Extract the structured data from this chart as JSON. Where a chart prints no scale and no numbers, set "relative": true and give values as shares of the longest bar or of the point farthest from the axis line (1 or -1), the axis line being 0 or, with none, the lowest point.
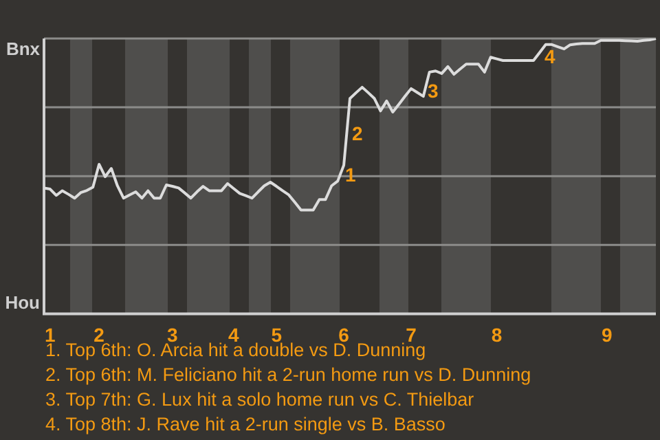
{
  "chart_data": {
    "type": "line",
    "relative": true,
    "categories": [
      null,
      "1",
      null,
      null,
      null,
      null,
      null,
      null,
      null,
      "2",
      null,
      null,
      null,
      null,
      null,
      null,
      null,
      null,
      null,
      null,
      null,
      "3",
      null,
      null,
      null,
      null,
      null,
      null,
      null,
      null,
      null,
      "4",
      null,
      null,
      null,
      null,
      null,
      null,
      "5",
      null,
      null,
      null,
      null,
      null,
      null,
      null,
      null,
      null,
      null,
      "6",
      null,
      null,
      null,
      null,
      null,
      null,
      null,
      null,
      null,
      null,
      "7",
      null,
      null,
      null,
      null,
      null,
      null,
      null,
      null,
      null,
      null,
      null,
      null,
      null,
      "8",
      null,
      null,
      null,
      null,
      null,
      null,
      null,
      null,
      null,
      null,
      null,
      null,
      null,
      null,
      null,
      null,
      null,
      "9",
      null,
      null,
      null,
      null,
      null,
      null,
      null,
      null
    ],
    "series": [
      {
        "color": "#dcdcdc",
        "values": [
          0.457,
          0.453,
          0.43,
          0.447,
          0.434,
          0.42,
          0.44,
          0.448,
          0.46,
          0.543,
          0.498,
          0.528,
          0.465,
          0.42,
          0.432,
          0.443,
          0.42,
          0.447,
          0.42,
          0.42,
          0.468,
          0.463,
          0.457,
          0.439,
          0.42,
          0.443,
          0.463,
          0.447,
          0.447,
          0.447,
          0.473,
          0.455,
          0.437,
          0.429,
          0.42,
          0.443,
          0.465,
          0.478,
          0.463,
          0.447,
          0.432,
          0.405,
          0.377,
          0.377,
          0.377,
          0.415,
          0.415,
          0.465,
          0.482,
          0.54,
          0.782,
          0.803,
          0.823,
          0.803,
          0.782,
          0.737,
          0.773,
          0.733,
          0.761,
          0.79,
          0.818,
          0.804,
          0.79,
          0.878,
          0.882,
          0.873,
          0.898,
          0.87,
          0.889,
          0.907,
          0.907,
          0.907,
          0.878,
          0.932,
          0.926,
          0.92,
          0.92,
          0.92,
          0.92,
          0.92,
          0.92,
          0.949,
          0.978,
          0.978,
          0.97,
          0.962,
          0.977,
          0.98,
          0.982,
          0.982,
          0.982,
          0.993,
          0.993,
          0.993,
          0.993,
          0.992,
          0.991,
          0.99,
          0.993,
          0.995,
          1
        ],
        "name": null
      }
    ],
    "grid": "y",
    "legend": false,
    "marker": "none",
    "line_style": "solid",
    "annotations": [
      "Bnx",
      "Hou",
      "1",
      "2",
      "3",
      "4",
      "1. Top 6th: O. Arcia hit a double vs D. Dunning",
      "2. Top 6th: M. Feliciano hit a 2-run home run vs D. Dunning",
      "3. Top 7th: G. Lux hit a solo home run vs C. Thielbar",
      "4. Top 8th: J. Rave hit a 2-run single vs B. Basso"
    ]
  }
}
